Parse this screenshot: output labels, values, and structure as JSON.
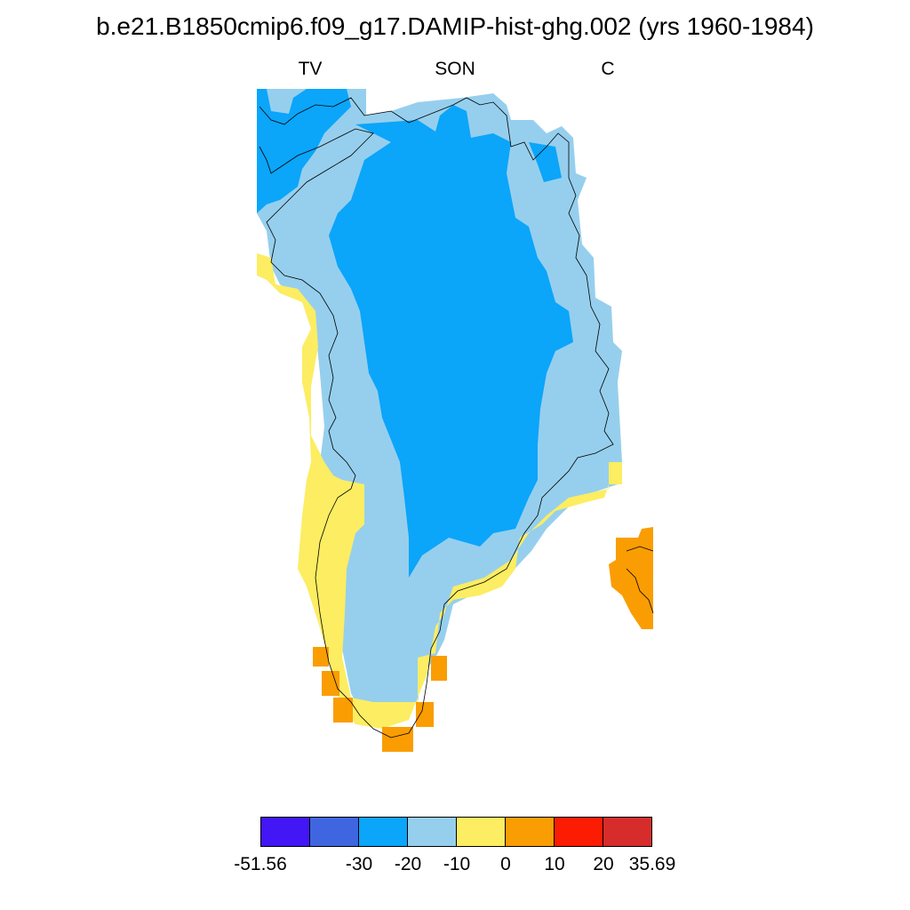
{
  "title": "b.e21.B1850cmip6.f09_g17.DAMIP-hist-ghg.002 (yrs 1960-1984)",
  "subtitle_left": "TV",
  "subtitle_center": "SON",
  "subtitle_right": "C",
  "colorbar": {
    "colors": [
      "#4316f5",
      "#3f66e0",
      "#0ba5fa",
      "#96cfed",
      "#fced62",
      "#fa9d03",
      "#fc1c03",
      "#d62c2c"
    ],
    "labels": [
      "-51.56",
      "-30",
      "-20",
      "-10",
      "0",
      "10",
      "20",
      "35.69"
    ]
  },
  "legend_colors": {
    "bin_minus30_minus20": "#0ba5fa",
    "bin_minus20_minus10": "#96cfed",
    "bin_minus10_0": "#fced62",
    "bin_0_10": "#fa9d03"
  }
}
